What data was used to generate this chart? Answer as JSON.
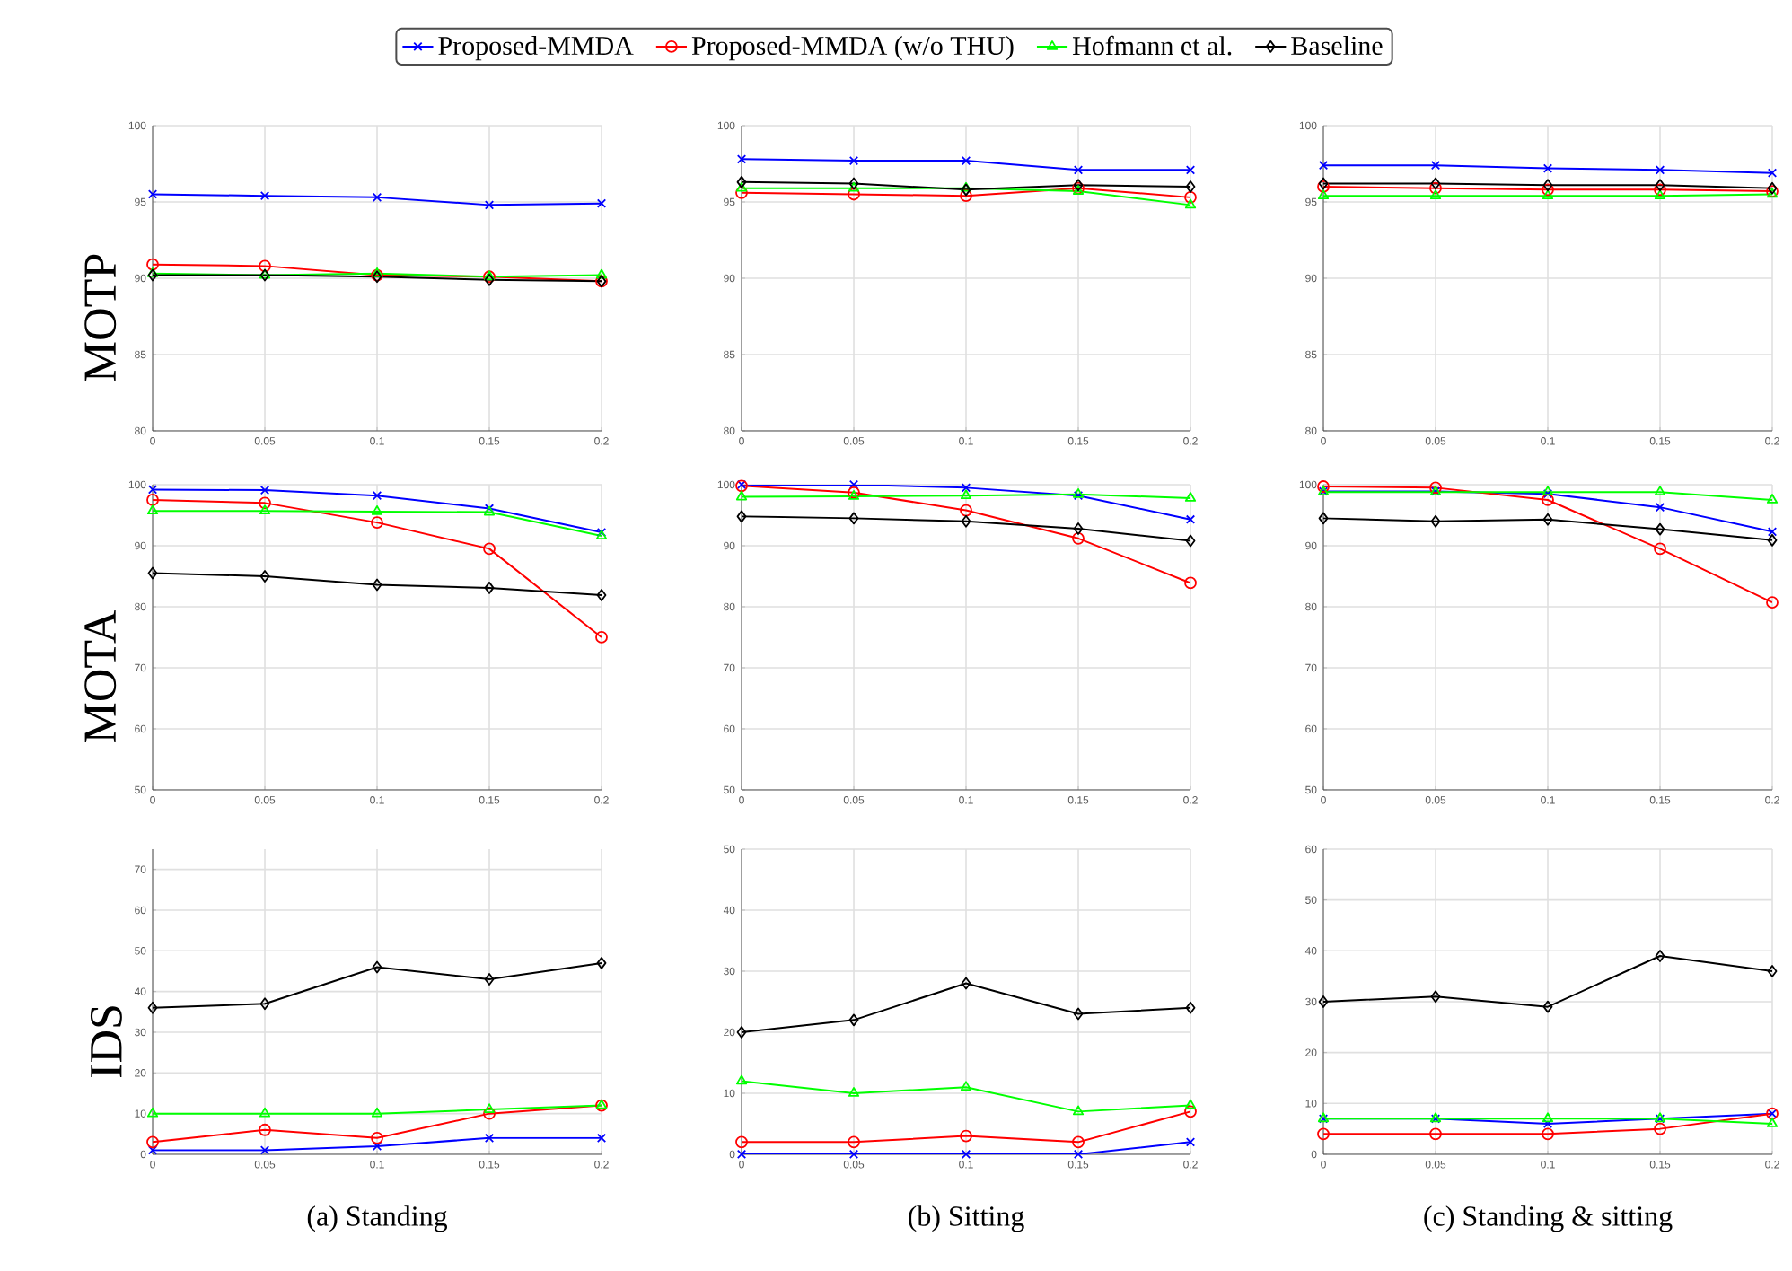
{
  "chart_data": [
    {
      "type": "line",
      "ylabel": "MOTP",
      "x": [
        0,
        0.05,
        0.1,
        0.15,
        0.2
      ],
      "xlim": [
        0,
        0.2
      ],
      "xticks": [
        0,
        0.05,
        0.1,
        0.15,
        0.2
      ],
      "ylim": [
        80,
        100
      ],
      "yticks": [
        80,
        85,
        90,
        95,
        100
      ],
      "grid": true,
      "legend": "top",
      "series": [
        {
          "name": "Proposed-MMDA",
          "color": "#0000ff",
          "marker": "cross",
          "values": [
            95.5,
            95.4,
            95.3,
            94.8,
            94.9
          ]
        },
        {
          "name": "Proposed-MMDA (w/o THU)",
          "color": "#ff0000",
          "marker": "circle",
          "values": [
            90.9,
            90.8,
            90.2,
            90.1,
            89.8
          ]
        },
        {
          "name": "Hofmann et al.",
          "color": "#00ff00",
          "marker": "triangle",
          "values": [
            90.3,
            90.2,
            90.3,
            90.1,
            90.2
          ]
        },
        {
          "name": "Baseline",
          "color": "#000000",
          "marker": "diamond",
          "values": [
            90.2,
            90.2,
            90.1,
            89.9,
            89.8
          ]
        }
      ]
    },
    {
      "type": "line",
      "x": [
        0,
        0.05,
        0.1,
        0.15,
        0.2
      ],
      "xlim": [
        0,
        0.2
      ],
      "xticks": [
        0,
        0.05,
        0.1,
        0.15,
        0.2
      ],
      "ylim": [
        80,
        100
      ],
      "yticks": [
        80,
        85,
        90,
        95,
        100
      ],
      "grid": true,
      "series": [
        {
          "color": "#0000ff",
          "marker": "cross",
          "values": [
            97.8,
            97.7,
            97.7,
            97.1,
            97.1
          ]
        },
        {
          "color": "#ff0000",
          "marker": "circle",
          "values": [
            95.6,
            95.5,
            95.4,
            95.9,
            95.3
          ]
        },
        {
          "color": "#00ff00",
          "marker": "triangle",
          "values": [
            95.9,
            95.9,
            95.9,
            95.7,
            94.8
          ]
        },
        {
          "color": "#000000",
          "marker": "diamond",
          "values": [
            96.3,
            96.2,
            95.8,
            96.1,
            96.0
          ]
        }
      ]
    },
    {
      "type": "line",
      "x": [
        0,
        0.05,
        0.1,
        0.15,
        0.2
      ],
      "xlim": [
        0,
        0.2
      ],
      "xticks": [
        0,
        0.05,
        0.1,
        0.15,
        0.2
      ],
      "ylim": [
        80,
        100
      ],
      "yticks": [
        80,
        85,
        90,
        95,
        100
      ],
      "grid": true,
      "series": [
        {
          "color": "#0000ff",
          "marker": "cross",
          "values": [
            97.4,
            97.4,
            97.2,
            97.1,
            96.9
          ]
        },
        {
          "color": "#ff0000",
          "marker": "circle",
          "values": [
            96.0,
            95.9,
            95.8,
            95.8,
            95.7
          ]
        },
        {
          "color": "#00ff00",
          "marker": "triangle",
          "values": [
            95.4,
            95.4,
            95.4,
            95.4,
            95.5
          ]
        },
        {
          "color": "#000000",
          "marker": "diamond",
          "values": [
            96.2,
            96.2,
            96.1,
            96.1,
            95.9
          ]
        }
      ]
    },
    {
      "type": "line",
      "ylabel": "MOTA",
      "x": [
        0,
        0.05,
        0.1,
        0.15,
        0.2
      ],
      "xlim": [
        0,
        0.2
      ],
      "xticks": [
        0,
        0.05,
        0.1,
        0.15,
        0.2
      ],
      "ylim": [
        50,
        100
      ],
      "yticks": [
        50,
        60,
        70,
        80,
        90,
        100
      ],
      "grid": true,
      "series": [
        {
          "color": "#0000ff",
          "marker": "cross",
          "values": [
            99.2,
            99.1,
            98.2,
            96.1,
            92.2
          ]
        },
        {
          "color": "#ff0000",
          "marker": "circle",
          "values": [
            97.5,
            97.0,
            93.8,
            89.5,
            75.0
          ]
        },
        {
          "color": "#00ff00",
          "marker": "triangle",
          "values": [
            95.7,
            95.7,
            95.6,
            95.5,
            91.6
          ]
        },
        {
          "color": "#000000",
          "marker": "diamond",
          "values": [
            85.5,
            85.0,
            83.6,
            83.1,
            81.9
          ]
        }
      ]
    },
    {
      "type": "line",
      "x": [
        0,
        0.05,
        0.1,
        0.15,
        0.2
      ],
      "xlim": [
        0,
        0.2
      ],
      "xticks": [
        0,
        0.05,
        0.1,
        0.15,
        0.2
      ],
      "ylim": [
        50,
        100
      ],
      "yticks": [
        50,
        60,
        70,
        80,
        90,
        100
      ],
      "grid": true,
      "series": [
        {
          "color": "#0000ff",
          "marker": "cross",
          "values": [
            100,
            100,
            99.5,
            98.2,
            94.3
          ]
        },
        {
          "color": "#ff0000",
          "marker": "circle",
          "values": [
            99.8,
            98.7,
            95.8,
            91.2,
            83.9
          ]
        },
        {
          "color": "#00ff00",
          "marker": "triangle",
          "values": [
            98.0,
            98.1,
            98.2,
            98.4,
            97.8
          ]
        },
        {
          "color": "#000000",
          "marker": "diamond",
          "values": [
            94.8,
            94.5,
            94.0,
            92.8,
            90.8
          ]
        }
      ]
    },
    {
      "type": "line",
      "x": [
        0,
        0.05,
        0.1,
        0.15,
        0.2
      ],
      "xlim": [
        0,
        0.2
      ],
      "xticks": [
        0,
        0.05,
        0.1,
        0.15,
        0.2
      ],
      "ylim": [
        50,
        100
      ],
      "yticks": [
        50,
        60,
        70,
        80,
        90,
        100
      ],
      "grid": true,
      "series": [
        {
          "color": "#0000ff",
          "marker": "cross",
          "values": [
            98.9,
            98.9,
            98.5,
            96.3,
            92.3
          ]
        },
        {
          "color": "#ff0000",
          "marker": "circle",
          "values": [
            99.7,
            99.5,
            97.5,
            89.5,
            80.7
          ]
        },
        {
          "color": "#00ff00",
          "marker": "triangle",
          "values": [
            98.8,
            98.8,
            98.8,
            98.8,
            97.5
          ]
        },
        {
          "color": "#000000",
          "marker": "diamond",
          "values": [
            94.5,
            94.0,
            94.3,
            92.7,
            90.9
          ]
        }
      ]
    },
    {
      "type": "line",
      "ylabel": "IDS",
      "xlabel": "(a) Standing",
      "x": [
        0,
        0.05,
        0.1,
        0.15,
        0.2
      ],
      "xlim": [
        0,
        0.2
      ],
      "xticks": [
        0,
        0.05,
        0.1,
        0.15,
        0.2
      ],
      "ylim": [
        0,
        75
      ],
      "yticks": [
        0,
        10,
        20,
        30,
        40,
        50,
        60,
        70
      ],
      "grid": true,
      "series": [
        {
          "color": "#0000ff",
          "marker": "cross",
          "values": [
            1,
            1,
            2,
            4,
            4
          ]
        },
        {
          "color": "#ff0000",
          "marker": "circle",
          "values": [
            3,
            6,
            4,
            10,
            12
          ]
        },
        {
          "color": "#00ff00",
          "marker": "triangle",
          "values": [
            10,
            10,
            10,
            11,
            12
          ]
        },
        {
          "color": "#000000",
          "marker": "diamond",
          "values": [
            36,
            37,
            46,
            43,
            47
          ]
        }
      ]
    },
    {
      "type": "line",
      "xlabel": "(b) Sitting",
      "x": [
        0,
        0.05,
        0.1,
        0.15,
        0.2
      ],
      "xlim": [
        0,
        0.2
      ],
      "xticks": [
        0,
        0.05,
        0.1,
        0.15,
        0.2
      ],
      "ylim": [
        0,
        50
      ],
      "yticks": [
        0,
        10,
        20,
        30,
        40,
        50
      ],
      "grid": true,
      "series": [
        {
          "color": "#0000ff",
          "marker": "cross",
          "values": [
            0,
            0,
            0,
            0,
            2
          ]
        },
        {
          "color": "#ff0000",
          "marker": "circle",
          "values": [
            2,
            2,
            3,
            2,
            7
          ]
        },
        {
          "color": "#00ff00",
          "marker": "triangle",
          "values": [
            12,
            10,
            11,
            7,
            8
          ]
        },
        {
          "color": "#000000",
          "marker": "diamond",
          "values": [
            20,
            22,
            28,
            23,
            24
          ]
        }
      ]
    },
    {
      "type": "line",
      "xlabel": "(c) Standing & sitting",
      "x": [
        0,
        0.05,
        0.1,
        0.15,
        0.2
      ],
      "xlim": [
        0,
        0.2
      ],
      "xticks": [
        0,
        0.05,
        0.1,
        0.15,
        0.2
      ],
      "ylim": [
        0,
        60
      ],
      "yticks": [
        0,
        10,
        20,
        30,
        40,
        50,
        60
      ],
      "grid": true,
      "series": [
        {
          "color": "#0000ff",
          "marker": "cross",
          "values": [
            7,
            7,
            6,
            7,
            8
          ]
        },
        {
          "color": "#ff0000",
          "marker": "circle",
          "values": [
            4,
            4,
            4,
            5,
            8
          ]
        },
        {
          "color": "#00ff00",
          "marker": "triangle",
          "values": [
            7,
            7,
            7,
            7,
            6
          ]
        },
        {
          "color": "#000000",
          "marker": "diamond",
          "values": [
            30,
            31,
            29,
            39,
            36
          ]
        }
      ]
    }
  ]
}
